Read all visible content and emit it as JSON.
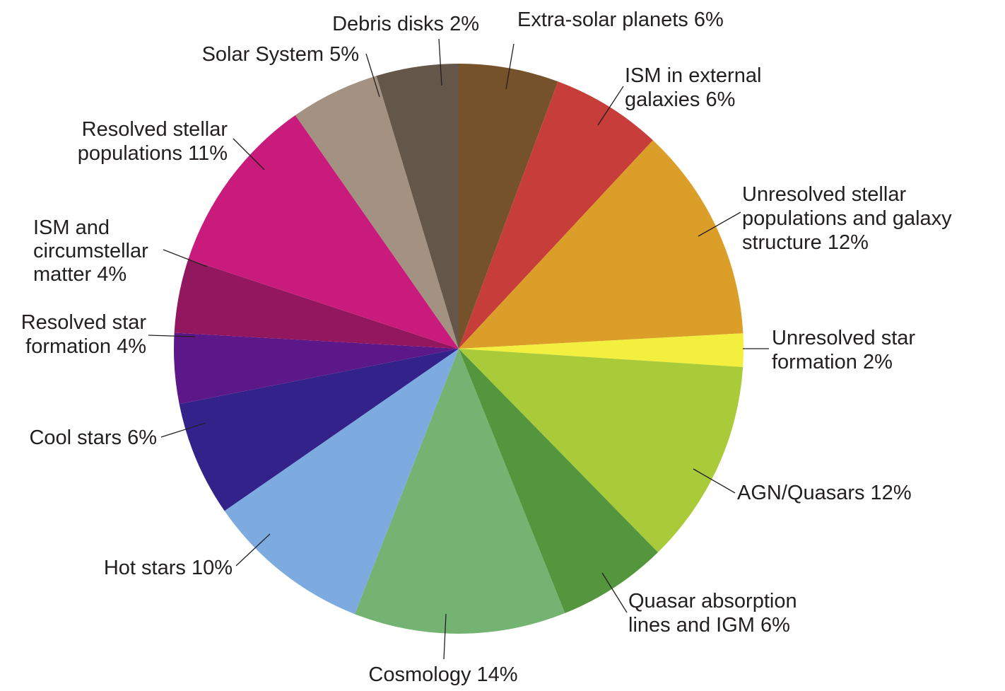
{
  "chart_data": {
    "type": "pie",
    "title": "",
    "slices": [
      {
        "label_lines": [
          "Extra-solar planets 6%"
        ],
        "value": 6,
        "color": "#76522b"
      },
      {
        "label_lines": [
          "ISM in external",
          "galaxies 6%"
        ],
        "value": 6,
        "color": "#c63d39"
      },
      {
        "label_lines": [
          "Unresolved stellar",
          "populations and galaxy",
          "structure 12%"
        ],
        "value": 12,
        "color": "#db9e29"
      },
      {
        "label_lines": [
          "Unresolved star",
          "formation 2%"
        ],
        "value": 2,
        "color": "#f2ef3e"
      },
      {
        "label_lines": [
          "AGN/Quasars 12%"
        ],
        "value": 12,
        "color": "#a9cb3a"
      },
      {
        "label_lines": [
          "Quasar absorption",
          "lines and IGM 6%"
        ],
        "value": 6,
        "color": "#54963e"
      },
      {
        "label_lines": [
          "Cosmology 14%"
        ],
        "value": 14,
        "color": "#74b372"
      },
      {
        "label_lines": [
          "Hot stars 10%"
        ],
        "value": 10,
        "color": "#7dabe0"
      },
      {
        "label_lines": [
          "Cool stars 6%"
        ],
        "value": 6,
        "color": "#33228a"
      },
      {
        "label_lines": [
          "Resolved star",
          "formation 4%"
        ],
        "value": 4,
        "color": "#5c1889"
      },
      {
        "label_lines": [
          "ISM and",
          "circumstellar",
          "matter 4%"
        ],
        "value": 4,
        "color": "#93175f"
      },
      {
        "label_lines": [
          "Resolved stellar",
          "populations 11%"
        ],
        "value": 11,
        "color": "#c81b7c"
      },
      {
        "label_lines": [
          "Solar System 5%"
        ],
        "value": 5,
        "color": "#a39182"
      },
      {
        "label_lines": [
          "Debris disks 2%"
        ],
        "value": 2,
        "color": "#645649"
      }
    ]
  }
}
